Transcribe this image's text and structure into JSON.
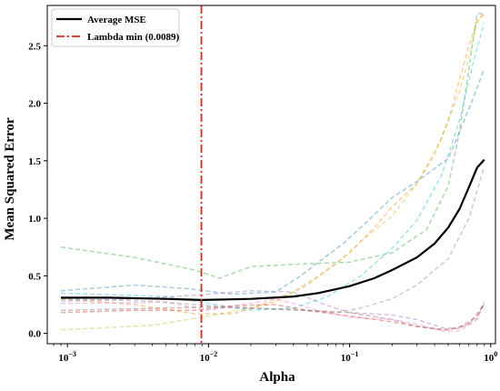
{
  "chart_data": {
    "type": "line",
    "xlabel": "Alpha",
    "ylabel": "Mean Squared Error",
    "x_scale": "log",
    "xlim": [
      0.00072,
      1.08
    ],
    "ylim": [
      -0.09,
      2.85
    ],
    "x_ticks": [
      {
        "value": 0.001,
        "base": "10",
        "exp": "−3"
      },
      {
        "value": 0.01,
        "base": "10",
        "exp": "−2"
      },
      {
        "value": 0.1,
        "base": "10",
        "exp": "−1"
      },
      {
        "value": 1,
        "base": "10",
        "exp": "0"
      }
    ],
    "y_ticks": [
      "0.0",
      "0.5",
      "1.0",
      "1.5",
      "2.0",
      "2.5"
    ],
    "grid": false,
    "legend_position": "top-left",
    "legend": [
      {
        "label": "Average MSE",
        "style": "solid",
        "color": "#000000"
      },
      {
        "label": "Lambda min (0.0089)",
        "style": "dashdot",
        "color": "#d62728"
      }
    ],
    "lambda_min": 0.0089,
    "average": {
      "color": "#000000",
      "points": [
        [
          0.0009,
          0.31
        ],
        [
          0.002,
          0.31
        ],
        [
          0.005,
          0.3
        ],
        [
          0.0089,
          0.29
        ],
        [
          0.02,
          0.3
        ],
        [
          0.04,
          0.32
        ],
        [
          0.06,
          0.35
        ],
        [
          0.1,
          0.41
        ],
        [
          0.15,
          0.48
        ],
        [
          0.2,
          0.55
        ],
        [
          0.3,
          0.66
        ],
        [
          0.4,
          0.78
        ],
        [
          0.5,
          0.92
        ],
        [
          0.6,
          1.08
        ],
        [
          0.7,
          1.27
        ],
        [
          0.8,
          1.44
        ],
        [
          0.9,
          1.51
        ]
      ]
    },
    "folds": [
      {
        "color": "#1f77b4",
        "points": [
          [
            0.0009,
            0.37
          ],
          [
            0.003,
            0.42
          ],
          [
            0.007,
            0.39
          ],
          [
            0.015,
            0.34
          ],
          [
            0.03,
            0.36
          ],
          [
            0.045,
            0.5
          ],
          [
            0.06,
            0.62
          ],
          [
            0.09,
            0.78
          ],
          [
            0.13,
            0.96
          ],
          [
            0.2,
            1.18
          ],
          [
            0.3,
            1.32
          ],
          [
            0.5,
            1.52
          ],
          [
            0.7,
            1.95
          ],
          [
            0.9,
            2.3
          ]
        ]
      },
      {
        "color": "#2ca02c",
        "points": [
          [
            0.0009,
            0.75
          ],
          [
            0.003,
            0.66
          ],
          [
            0.008,
            0.55
          ],
          [
            0.012,
            0.48
          ],
          [
            0.02,
            0.58
          ],
          [
            0.04,
            0.6
          ],
          [
            0.1,
            0.62
          ],
          [
            0.2,
            0.7
          ],
          [
            0.35,
            0.9
          ],
          [
            0.5,
            1.28
          ],
          [
            0.6,
            1.75
          ],
          [
            0.7,
            2.3
          ],
          [
            0.8,
            2.78
          ],
          [
            0.9,
            2.78
          ]
        ]
      },
      {
        "color": "#ff7f0e",
        "points": [
          [
            0.0009,
            0.3
          ],
          [
            0.003,
            0.25
          ],
          [
            0.008,
            0.17
          ],
          [
            0.015,
            0.17
          ],
          [
            0.03,
            0.28
          ],
          [
            0.05,
            0.42
          ],
          [
            0.1,
            0.7
          ],
          [
            0.15,
            0.92
          ],
          [
            0.2,
            1.1
          ],
          [
            0.3,
            1.3
          ],
          [
            0.4,
            1.55
          ],
          [
            0.5,
            1.85
          ],
          [
            0.6,
            2.2
          ],
          [
            0.7,
            2.5
          ],
          [
            0.8,
            2.72
          ],
          [
            0.9,
            2.78
          ]
        ]
      },
      {
        "color": "#bcbd22",
        "points": [
          [
            0.0009,
            0.03
          ],
          [
            0.004,
            0.07
          ],
          [
            0.01,
            0.15
          ],
          [
            0.02,
            0.22
          ],
          [
            0.04,
            0.36
          ],
          [
            0.08,
            0.6
          ],
          [
            0.12,
            0.8
          ],
          [
            0.2,
            1.02
          ],
          [
            0.3,
            1.3
          ],
          [
            0.45,
            1.7
          ],
          [
            0.6,
            2.1
          ],
          [
            0.7,
            2.4
          ],
          [
            0.8,
            2.7
          ],
          [
            0.9,
            2.78
          ]
        ]
      },
      {
        "color": "#17becf",
        "points": [
          [
            0.0009,
            0.35
          ],
          [
            0.005,
            0.32
          ],
          [
            0.01,
            0.26
          ],
          [
            0.02,
            0.2
          ],
          [
            0.04,
            0.22
          ],
          [
            0.07,
            0.32
          ],
          [
            0.12,
            0.5
          ],
          [
            0.2,
            0.74
          ],
          [
            0.3,
            0.98
          ],
          [
            0.45,
            1.38
          ],
          [
            0.6,
            1.85
          ],
          [
            0.75,
            2.35
          ],
          [
            0.9,
            2.7
          ]
        ]
      },
      {
        "color": "#7f7f7f",
        "points": [
          [
            0.0009,
            0.3
          ],
          [
            0.004,
            0.28
          ],
          [
            0.01,
            0.24
          ],
          [
            0.02,
            0.22
          ],
          [
            0.05,
            0.2
          ],
          [
            0.08,
            0.18
          ],
          [
            0.12,
            0.22
          ],
          [
            0.2,
            0.3
          ],
          [
            0.3,
            0.42
          ],
          [
            0.5,
            0.65
          ],
          [
            0.7,
            1.0
          ],
          [
            0.9,
            1.45
          ]
        ]
      },
      {
        "color": "#d62728",
        "points": [
          [
            0.0009,
            0.18
          ],
          [
            0.003,
            0.2
          ],
          [
            0.008,
            0.2
          ],
          [
            0.015,
            0.24
          ],
          [
            0.03,
            0.25
          ],
          [
            0.05,
            0.2
          ],
          [
            0.1,
            0.15
          ],
          [
            0.2,
            0.1
          ],
          [
            0.3,
            0.06
          ],
          [
            0.45,
            0.03
          ],
          [
            0.6,
            0.05
          ],
          [
            0.8,
            0.15
          ],
          [
            0.9,
            0.27
          ]
        ]
      },
      {
        "color": "#e377c2",
        "points": [
          [
            0.0009,
            0.26
          ],
          [
            0.005,
            0.27
          ],
          [
            0.01,
            0.2
          ],
          [
            0.03,
            0.3
          ],
          [
            0.06,
            0.2
          ],
          [
            0.1,
            0.14
          ],
          [
            0.2,
            0.12
          ],
          [
            0.3,
            0.08
          ],
          [
            0.45,
            0.02
          ],
          [
            0.6,
            0.02
          ],
          [
            0.8,
            0.12
          ],
          [
            0.9,
            0.27
          ]
        ]
      },
      {
        "color": "#9467bd",
        "points": [
          [
            0.0009,
            0.28
          ],
          [
            0.003,
            0.3
          ],
          [
            0.01,
            0.34
          ],
          [
            0.02,
            0.37
          ],
          [
            0.04,
            0.36
          ],
          [
            0.07,
            0.24
          ],
          [
            0.1,
            0.18
          ],
          [
            0.2,
            0.16
          ],
          [
            0.3,
            0.12
          ],
          [
            0.45,
            0.05
          ],
          [
            0.6,
            0.04
          ],
          [
            0.8,
            0.13
          ],
          [
            0.9,
            0.26
          ]
        ]
      },
      {
        "color": "#8c564b",
        "points": [
          [
            0.0009,
            0.2
          ],
          [
            0.005,
            0.22
          ],
          [
            0.01,
            0.23
          ],
          [
            0.02,
            0.22
          ],
          [
            0.05,
            0.2
          ],
          [
            0.1,
            0.18
          ],
          [
            0.2,
            0.12
          ],
          [
            0.3,
            0.06
          ],
          [
            0.5,
            0.03
          ],
          [
            0.7,
            0.08
          ],
          [
            0.9,
            0.25
          ]
        ]
      }
    ]
  }
}
